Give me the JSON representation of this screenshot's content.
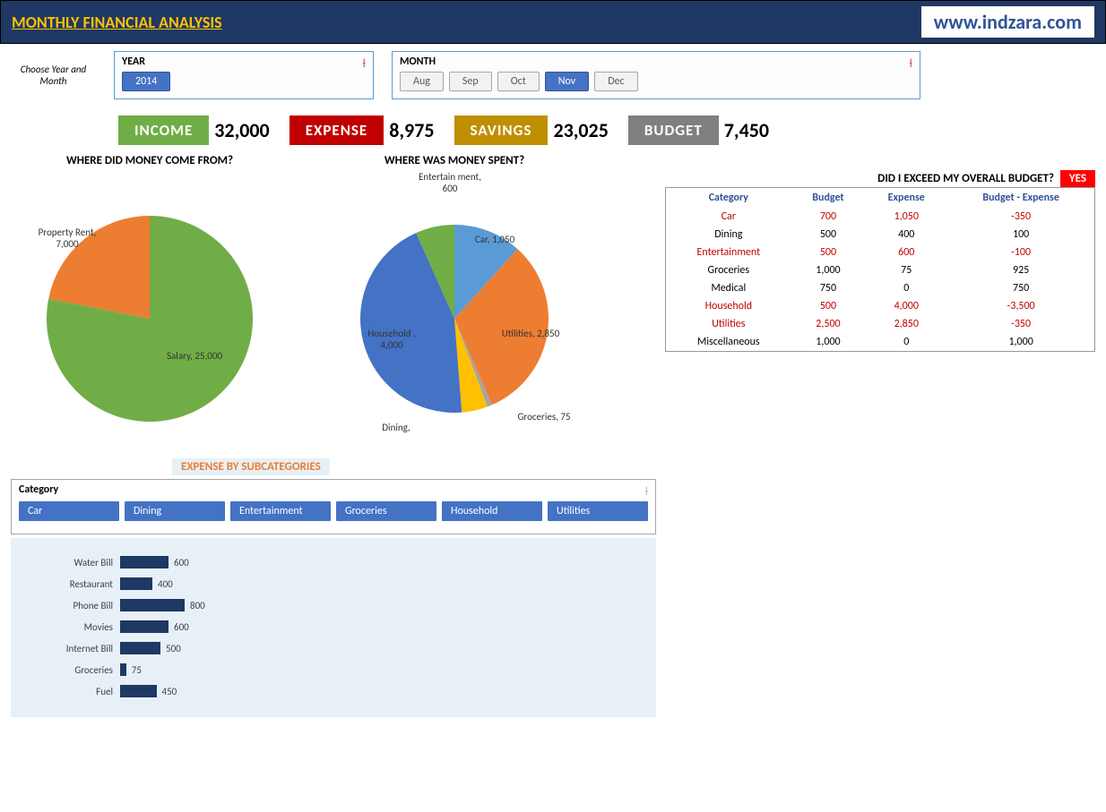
{
  "header": {
    "title": "MONTHLY FINANCIAL ANALYSIS",
    "url": "www.indzara.com"
  },
  "slicers": {
    "label": "Choose Year and Month",
    "year": {
      "title": "YEAR",
      "items": [
        "2014"
      ],
      "active": "2014"
    },
    "month": {
      "title": "MONTH",
      "items": [
        "Aug",
        "Sep",
        "Oct",
        "Nov",
        "Dec"
      ],
      "active": "Nov"
    }
  },
  "kpis": {
    "income": {
      "label": "INCOME",
      "value": "32,000",
      "color": "#70ad47"
    },
    "expense": {
      "label": "EXPENSE",
      "value": "8,975",
      "color": "#c00000"
    },
    "savings": {
      "label": "SAVINGS",
      "value": "23,025",
      "color": "#bf8f00"
    },
    "budget": {
      "label": "BUDGET",
      "value": "7,450",
      "color": "#808080"
    }
  },
  "pies": {
    "income": {
      "title": "WHERE DID MONEY COME FROM?",
      "slices": [
        {
          "label": "Salary, 25,000",
          "value": 25000,
          "color": "#70ad47"
        },
        {
          "label": "Property Rent, 7,000",
          "value": 7000,
          "color": "#ed7d31"
        }
      ]
    },
    "expense": {
      "title": "WHERE WAS MONEY SPENT?",
      "slices": [
        {
          "label": "Car, 1,050",
          "value": 1050,
          "color": "#5b9bd5"
        },
        {
          "label": "Utilities, 2,850",
          "value": 2850,
          "color": "#ed7d31"
        },
        {
          "label": "Groceries, 75",
          "value": 75,
          "color": "#a5a5a5"
        },
        {
          "label": "Dining,",
          "value": 400,
          "color": "#ffc000"
        },
        {
          "label": "Household , 4,000",
          "value": 4000,
          "color": "#4472c4"
        },
        {
          "label": "Entertain ment, 600",
          "value": 600,
          "color": "#70ad47"
        }
      ]
    }
  },
  "subcat": {
    "title": "EXPENSE BY SUBCATEGORIES",
    "slicer_label": "Category",
    "categories": [
      "Car",
      "Dining",
      "Entertainment",
      "Groceries",
      "Household",
      "Utilities"
    ]
  },
  "bars": {
    "max": 1000,
    "color": "#1f3864",
    "bg": "#e7f0f7",
    "items": [
      {
        "label": "Water Bill",
        "value": 600
      },
      {
        "label": "Restaurant",
        "value": 400
      },
      {
        "label": "Phone Bill",
        "value": 800
      },
      {
        "label": "Movies",
        "value": 600
      },
      {
        "label": "Internet Bill",
        "value": 500
      },
      {
        "label": "Groceries",
        "value": 75
      },
      {
        "label": "Fuel",
        "value": 450
      }
    ]
  },
  "budget": {
    "question": "DID I EXCEED MY OVERALL BUDGET?",
    "answer": "YES",
    "headers": [
      "Category",
      "Budget",
      "Expense",
      "Budget - Expense"
    ],
    "rows": [
      {
        "cat": "Car",
        "budget": "700",
        "expense": "1,050",
        "diff": "-350",
        "over": true
      },
      {
        "cat": "Dining",
        "budget": "500",
        "expense": "400",
        "diff": "100",
        "over": false
      },
      {
        "cat": "Entertainment",
        "budget": "500",
        "expense": "600",
        "diff": "-100",
        "over": true
      },
      {
        "cat": "Groceries",
        "budget": "1,000",
        "expense": "75",
        "diff": "925",
        "over": false
      },
      {
        "cat": "Medical",
        "budget": "750",
        "expense": "0",
        "diff": "750",
        "over": false
      },
      {
        "cat": "Household",
        "budget": "500",
        "expense": "4,000",
        "diff": "-3,500",
        "over": true
      },
      {
        "cat": "Utilities",
        "budget": "2,500",
        "expense": "2,850",
        "diff": "-350",
        "over": true
      },
      {
        "cat": "Miscellaneous",
        "budget": "1,000",
        "expense": "0",
        "diff": "1,000",
        "over": false
      }
    ]
  }
}
